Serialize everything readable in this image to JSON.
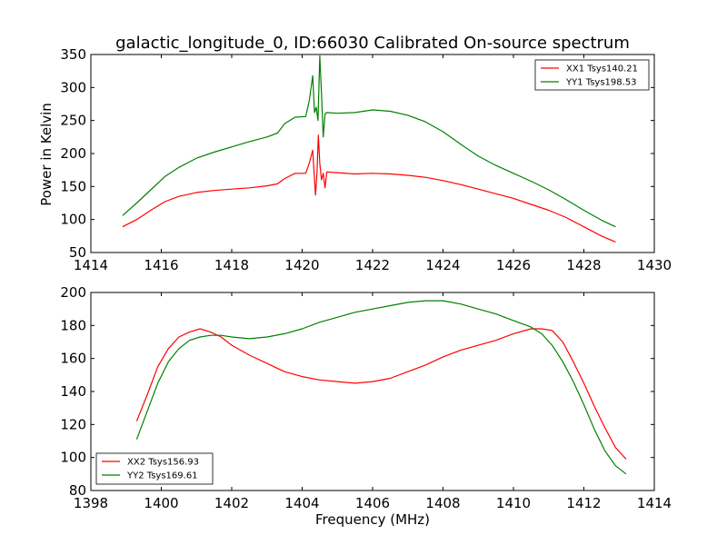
{
  "chart_data": [
    {
      "type": "line",
      "title": "galactic_longitude_0, ID:66030 Calibrated On-source spectrum",
      "xlabel": "",
      "ylabel": "Power in Kelvin",
      "xlim": [
        1414,
        1430
      ],
      "ylim": [
        50,
        350
      ],
      "xticks": [
        1414,
        1416,
        1418,
        1420,
        1422,
        1424,
        1426,
        1428,
        1430
      ],
      "yticks": [
        50,
        100,
        150,
        200,
        250,
        300,
        350
      ],
      "legend_position": "top-right",
      "grid": false,
      "series": [
        {
          "name": "XX1 Tsys140.21",
          "color": "#ff0000",
          "x": [
            1414.9,
            1415.3,
            1415.7,
            1416.1,
            1416.5,
            1417.0,
            1417.5,
            1418.0,
            1418.5,
            1419.0,
            1419.3,
            1419.5,
            1419.8,
            1420.1,
            1420.2,
            1420.3,
            1420.38,
            1420.42,
            1420.46,
            1420.5,
            1420.55,
            1420.6,
            1420.65,
            1420.7,
            1421.0,
            1421.5,
            1422.0,
            1422.5,
            1423.0,
            1423.5,
            1424.0,
            1424.5,
            1425.0,
            1425.5,
            1426.0,
            1426.5,
            1427.0,
            1427.5,
            1428.0,
            1428.5,
            1428.9
          ],
          "values": [
            89,
            100,
            114,
            127,
            135,
            141,
            144,
            146,
            148,
            151,
            154,
            162,
            170,
            170,
            185,
            205,
            137,
            170,
            228,
            185,
            160,
            170,
            148,
            172,
            171,
            169,
            170,
            169,
            167,
            164,
            159,
            153,
            146,
            139,
            132,
            123,
            114,
            103,
            89,
            75,
            66
          ]
        },
        {
          "name": "YY1 Tsys198.53",
          "color": "#008000",
          "x": [
            1414.9,
            1415.3,
            1415.7,
            1416.1,
            1416.5,
            1417.0,
            1417.5,
            1418.0,
            1418.5,
            1419.0,
            1419.3,
            1419.5,
            1419.8,
            1420.1,
            1420.2,
            1420.3,
            1420.35,
            1420.4,
            1420.45,
            1420.5,
            1420.55,
            1420.6,
            1420.65,
            1420.7,
            1421.0,
            1421.5,
            1422.0,
            1422.5,
            1423.0,
            1423.5,
            1424.0,
            1424.5,
            1425.0,
            1425.5,
            1426.0,
            1426.5,
            1427.0,
            1427.5,
            1428.0,
            1428.5,
            1428.9
          ],
          "values": [
            106,
            125,
            145,
            165,
            179,
            193,
            202,
            210,
            218,
            225,
            231,
            245,
            255,
            256,
            280,
            318,
            262,
            270,
            250,
            348,
            290,
            225,
            260,
            262,
            261,
            262,
            266,
            264,
            258,
            248,
            233,
            214,
            196,
            182,
            170,
            158,
            145,
            130,
            114,
            99,
            89
          ]
        }
      ]
    },
    {
      "type": "line",
      "title": "",
      "xlabel": "Frequency (MHz)",
      "ylabel": "",
      "xlim": [
        1398,
        1414
      ],
      "ylim": [
        80,
        200
      ],
      "xticks": [
        1398,
        1400,
        1402,
        1404,
        1406,
        1408,
        1410,
        1412,
        1414
      ],
      "yticks": [
        80,
        100,
        120,
        140,
        160,
        180,
        200
      ],
      "legend_position": "bottom-left",
      "grid": false,
      "series": [
        {
          "name": "XX2 Tsys156.93",
          "color": "#ff0000",
          "x": [
            1399.3,
            1399.6,
            1399.9,
            1400.2,
            1400.5,
            1400.8,
            1401.1,
            1401.4,
            1401.7,
            1402.0,
            1402.5,
            1403.0,
            1403.5,
            1404.0,
            1404.5,
            1405.0,
            1405.5,
            1406.0,
            1406.5,
            1407.0,
            1407.5,
            1408.0,
            1408.5,
            1409.0,
            1409.5,
            1410.0,
            1410.5,
            1410.8,
            1411.1,
            1411.4,
            1411.7,
            1412.0,
            1412.3,
            1412.6,
            1412.9,
            1413.2
          ],
          "values": [
            122,
            138,
            155,
            166,
            173,
            176,
            178,
            176,
            173,
            168,
            162,
            157,
            152,
            149,
            147,
            146,
            145,
            146,
            148,
            152,
            156,
            161,
            165,
            168,
            171,
            175,
            178,
            178,
            177,
            170,
            158,
            145,
            131,
            118,
            106,
            99
          ]
        },
        {
          "name": "YY2 Tsys169.61",
          "color": "#008000",
          "x": [
            1399.3,
            1399.6,
            1399.9,
            1400.2,
            1400.5,
            1400.8,
            1401.1,
            1401.4,
            1401.7,
            1402.0,
            1402.5,
            1403.0,
            1403.5,
            1404.0,
            1404.5,
            1405.0,
            1405.5,
            1406.0,
            1406.5,
            1407.0,
            1407.5,
            1408.0,
            1408.5,
            1409.0,
            1409.5,
            1410.0,
            1410.5,
            1410.8,
            1411.1,
            1411.4,
            1411.7,
            1412.0,
            1412.3,
            1412.6,
            1412.9,
            1413.2
          ],
          "values": [
            111,
            128,
            145,
            158,
            166,
            171,
            173,
            174,
            174,
            173,
            172,
            173,
            175,
            178,
            182,
            185,
            188,
            190,
            192,
            194,
            195,
            195,
            193,
            190,
            187,
            183,
            179,
            175,
            168,
            158,
            146,
            132,
            117,
            104,
            95,
            90
          ]
        }
      ]
    }
  ]
}
